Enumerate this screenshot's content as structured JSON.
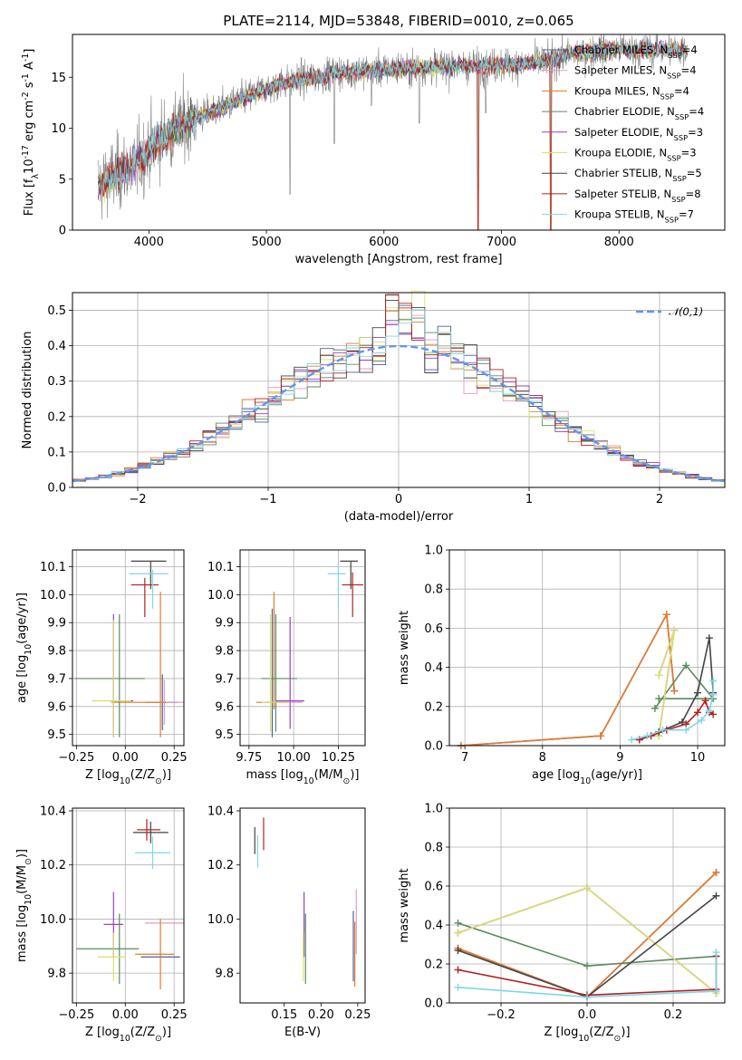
{
  "title": "PLATE=2114, MJD=53848, FIBERID=0010, z=0.065",
  "colors": [
    "#4d5f9b",
    "#e599c9",
    "#e07b2b",
    "#5b8a5f",
    "#9a3fc5",
    "#d9e16a",
    "#444444",
    "#b22222",
    "#7fd6e6"
  ],
  "model_labels": [
    "Chabrier MILES, N$_{SSP}$=4",
    "Salpeter MILES, N$_{SSP}$=4",
    "Kroupa MILES, N$_{SSP}$=4",
    "Chabrier ELODIE, N$_{SSP}$=4",
    "Salpeter ELODIE, N$_{SSP}$=3",
    "Kroupa ELODIE, N$_{SSP}$=3",
    "Chabrier STELIB, N$_{SSP}$=5",
    "Salpeter STELIB, N$_{SSP}$=8",
    "Kroupa STELIB, N$_{SSP}$=7"
  ],
  "chart_data": [
    {
      "type": "line",
      "id": "spectrum",
      "xlabel": "wavelength [Angstrom, rest frame]",
      "ylabel": "Flux [f$_\\lambda$10$^{-17}$ erg cm$^{-2}$ s$^{-1}$ A$^{-1}$]",
      "xlim": [
        3350,
        8900
      ],
      "ylim": [
        0,
        19.2
      ],
      "xticks": [
        4000,
        5000,
        6000,
        7000,
        8000
      ],
      "yticks": [
        0,
        5,
        10,
        15
      ],
      "data_range": [
        3570,
        8580
      ],
      "continuum": {
        "x": [
          3570,
          3700,
          3800,
          3900,
          4000,
          4100,
          4200,
          4300,
          4400,
          4600,
          4800,
          5000,
          5200,
          5400,
          5600,
          5800,
          6000,
          6200,
          6400,
          6600,
          6800,
          7000,
          7200,
          7400,
          7600,
          7800,
          8000,
          8200,
          8400,
          8580
        ],
        "y": [
          4.4,
          5.3,
          5.9,
          6.6,
          7.9,
          9.0,
          9.7,
          10.4,
          11.0,
          11.9,
          12.9,
          13.9,
          14.6,
          15.0,
          15.4,
          15.6,
          15.8,
          15.9,
          16.0,
          16.1,
          16.1,
          16.2,
          16.3,
          16.6,
          17.3,
          17.6,
          17.7,
          17.7,
          17.7,
          17.7
        ]
      },
      "lines": [
        {
          "x": 5200,
          "y": 3.5
        },
        {
          "x": 5577,
          "y": 8.5
        },
        {
          "x": 5893,
          "y": 12.2
        },
        {
          "x": 6300,
          "y": 10.5
        },
        {
          "x": 6800,
          "y": 0.0
        },
        {
          "x": 6867,
          "y": 11.5
        },
        {
          "x": 7420,
          "y": 0.0
        },
        {
          "x": 7605,
          "y": 17.0
        }
      ],
      "series": [
        {
          "name": "Chabrier MILES, N$_{SSP}$=4"
        },
        {
          "name": "Salpeter MILES, N$_{SSP}$=4"
        },
        {
          "name": "Kroupa MILES, N$_{SSP}$=4"
        },
        {
          "name": "Chabrier ELODIE, N$_{SSP}$=4"
        },
        {
          "name": "Salpeter ELODIE, N$_{SSP}$=3"
        },
        {
          "name": "Kroupa ELODIE, N$_{SSP}$=3"
        },
        {
          "name": "Chabrier STELIB, N$_{SSP}$=5"
        },
        {
          "name": "Salpeter STELIB, N$_{SSP}$=8"
        },
        {
          "name": "Kroupa STELIB, N$_{SSP}$=7"
        }
      ],
      "legend": "right",
      "grid": false
    },
    {
      "type": "line",
      "id": "residuals",
      "xlabel": "(data-model)/error",
      "ylabel": "Normed distribution",
      "xlim": [
        -2.5,
        2.5
      ],
      "ylim": [
        0,
        0.55
      ],
      "xticks": [
        -2,
        -1,
        0,
        1,
        2
      ],
      "yticks": [
        0.0,
        0.1,
        0.2,
        0.3,
        0.4,
        0.5
      ],
      "bin_width": 0.1,
      "gaussian_label": "$\\mathcal{N}(0,1)$",
      "legend": "upper right",
      "grid": true
    },
    {
      "type": "scatter",
      "id": "age_vs_Z",
      "xlabel": "Z [log$_{10}$(Z/Z$_\\odot$)]",
      "ylabel": "age  [log$_{10}$(age/yr)]",
      "xlim": [
        -0.27,
        0.3
      ],
      "ylim": [
        9.46,
        10.16
      ],
      "xticks": [
        -0.25,
        0.0,
        0.25
      ],
      "yticks": [
        9.5,
        9.6,
        9.7,
        9.8,
        9.9,
        10.0,
        10.1
      ],
      "grid": true,
      "points": [
        {
          "c": 0,
          "x": 0.19,
          "y": 9.615,
          "xerr": 0.08,
          "yerr": 0.1
        },
        {
          "c": 1,
          "x": 0.2,
          "y": 9.615,
          "xerr": 0.1,
          "yerr": 0.08
        },
        {
          "c": 2,
          "x": 0.07,
          "y": 9.615,
          "xerr": 0.14,
          "yerr": 0.0
        },
        {
          "c": 2,
          "x": 0.18,
          "y": 9.75,
          "xerr": 0.0,
          "yerr": 0.26
        },
        {
          "c": 3,
          "x": -0.08,
          "y": 9.7,
          "xerr": 0.18,
          "yerr": 0.0
        },
        {
          "c": 3,
          "x": -0.03,
          "y": 9.71,
          "xerr": 0.0,
          "yerr": 0.22
        },
        {
          "c": 4,
          "x": -0.06,
          "y": 9.71,
          "xerr": 0.0,
          "yerr": 0.22
        },
        {
          "c": 4,
          "x": -0.02,
          "y": 9.62,
          "xerr": 0.06,
          "yerr": 0.0
        },
        {
          "c": 5,
          "x": -0.06,
          "y": 9.7,
          "xerr": 0.0,
          "yerr": 0.21
        },
        {
          "c": 5,
          "x": -0.07,
          "y": 9.62,
          "xerr": 0.1,
          "yerr": 0.0
        },
        {
          "c": 6,
          "x": 0.12,
          "y": 10.12,
          "xerr": 0.09,
          "yerr": 0.0
        },
        {
          "c": 6,
          "x": 0.13,
          "y": 10.07,
          "xerr": 0.0,
          "yerr": 0.05
        },
        {
          "c": 7,
          "x": 0.1,
          "y": 10.035,
          "xerr": 0.07,
          "yerr": 0.0
        },
        {
          "c": 7,
          "x": 0.1,
          "y": 9.99,
          "xerr": 0.0,
          "yerr": 0.07
        },
        {
          "c": 8,
          "x": 0.12,
          "y": 10.075,
          "xerr": 0.1,
          "yerr": 0.0
        },
        {
          "c": 8,
          "x": 0.14,
          "y": 10.02,
          "xerr": 0.0,
          "yerr": 0.07
        }
      ]
    },
    {
      "type": "scatter",
      "id": "age_vs_mass",
      "xlabel": "mass [log$_{10}$(M/M$_\\odot$)]",
      "ylabel": "",
      "xlim": [
        9.7,
        10.4
      ],
      "ylim": [
        9.46,
        10.16
      ],
      "xticks": [
        9.75,
        10.0,
        10.25
      ],
      "yticks": [
        9.5,
        9.6,
        9.7,
        9.8,
        9.9,
        10.0,
        10.1
      ],
      "grid": true,
      "points": [
        {
          "c": 0,
          "x": 9.88,
          "y": 9.72,
          "xerr": 0.0,
          "yerr": 0.23
        },
        {
          "c": 1,
          "x": 9.95,
          "y": 9.615,
          "xerr": 0.1,
          "yerr": 0.0
        },
        {
          "c": 2,
          "x": 9.88,
          "y": 9.615,
          "xerr": 0.09,
          "yerr": 0.0
        },
        {
          "c": 2,
          "x": 9.89,
          "y": 9.8,
          "xerr": 0.0,
          "yerr": 0.21
        },
        {
          "c": 3,
          "x": 9.92,
          "y": 9.7,
          "xerr": 0.1,
          "yerr": 0.0
        },
        {
          "c": 3,
          "x": 9.9,
          "y": 9.72,
          "xerr": 0.0,
          "yerr": 0.21
        },
        {
          "c": 4,
          "x": 9.98,
          "y": 9.72,
          "xerr": 0.0,
          "yerr": 0.2
        },
        {
          "c": 4,
          "x": 9.98,
          "y": 9.62,
          "xerr": 0.08,
          "yerr": 0.0
        },
        {
          "c": 5,
          "x": 9.87,
          "y": 9.72,
          "xerr": 0.0,
          "yerr": 0.21
        },
        {
          "c": 5,
          "x": 9.9,
          "y": 9.615,
          "xerr": 0.08,
          "yerr": 0.0
        },
        {
          "c": 6,
          "x": 10.31,
          "y": 10.12,
          "xerr": 0.05,
          "yerr": 0.0
        },
        {
          "c": 6,
          "x": 10.32,
          "y": 10.07,
          "xerr": 0.0,
          "yerr": 0.05
        },
        {
          "c": 7,
          "x": 10.33,
          "y": 10.035,
          "xerr": 0.06,
          "yerr": 0.0
        },
        {
          "c": 7,
          "x": 10.33,
          "y": 10.0,
          "xerr": 0.0,
          "yerr": 0.08
        },
        {
          "c": 8,
          "x": 10.24,
          "y": 10.075,
          "xerr": 0.05,
          "yerr": 0.0
        },
        {
          "c": 8,
          "x": 10.25,
          "y": 10.03,
          "xerr": 0.0,
          "yerr": 0.08
        }
      ]
    },
    {
      "type": "line",
      "id": "mass_weight_vs_age",
      "xlabel": "age  [log$_{10}$(age/yr)]",
      "ylabel": "mass weight",
      "xlim": [
        6.8,
        10.35
      ],
      "ylim": [
        0,
        1.0
      ],
      "xticks": [
        7,
        8,
        9,
        10
      ],
      "yticks": [
        0.0,
        0.2,
        0.4,
        0.6,
        0.8,
        1.0
      ],
      "grid": true,
      "series": [
        {
          "c": 0,
          "x": [
            6.95,
            8.75,
            9.6,
            9.7
          ],
          "y": [
            0.0,
            0.05,
            0.67,
            0.28
          ]
        },
        {
          "c": 1,
          "x": [
            6.95,
            8.75,
            9.6,
            9.7
          ],
          "y": [
            0.0,
            0.05,
            0.67,
            0.28
          ]
        },
        {
          "c": 2,
          "x": [
            6.95,
            8.75,
            9.6,
            9.7
          ],
          "y": [
            0.0,
            0.05,
            0.67,
            0.28
          ]
        },
        {
          "c": 3,
          "x": [
            9.45,
            9.85,
            10.2,
            9.5
          ],
          "y": [
            0.19,
            0.41,
            0.24,
            0.24
          ]
        },
        {
          "c": 4,
          "x": [
            9.5,
            9.7,
            9.5
          ],
          "y": [
            0.36,
            0.59,
            0.05
          ]
        },
        {
          "c": 5,
          "x": [
            9.5,
            9.7,
            9.5
          ],
          "y": [
            0.36,
            0.59,
            0.05
          ]
        },
        {
          "c": 6,
          "x": [
            9.25,
            9.5,
            9.8,
            10.0,
            10.15,
            10.2
          ],
          "y": [
            0.03,
            0.07,
            0.12,
            0.27,
            0.55,
            0.27
          ]
        },
        {
          "c": 7,
          "x": [
            9.25,
            9.4,
            9.6,
            9.85,
            10.0,
            10.1,
            10.15,
            10.2
          ],
          "y": [
            0.03,
            0.05,
            0.08,
            0.11,
            0.17,
            0.23,
            0.17,
            0.16
          ]
        },
        {
          "c": 8,
          "x": [
            9.15,
            9.35,
            9.55,
            9.85,
            10.05,
            10.15,
            10.2,
            10.2
          ],
          "y": [
            0.03,
            0.05,
            0.08,
            0.08,
            0.13,
            0.18,
            0.26,
            0.33
          ]
        }
      ]
    },
    {
      "type": "scatter",
      "id": "mass_vs_Z",
      "xlabel": "Z [log$_{10}$(Z/Z$_\\odot$)]",
      "ylabel": "mass [log$_{10}$(M/M$_\\odot$)]",
      "xlim": [
        -0.27,
        0.3
      ],
      "ylim": [
        9.69,
        10.41
      ],
      "xticks": [
        -0.25,
        0.0,
        0.25
      ],
      "yticks": [
        9.8,
        10.0,
        10.2,
        10.4
      ],
      "grid": true,
      "points": [
        {
          "c": 0,
          "x": 0.18,
          "y": 9.86,
          "xerr": 0.1,
          "yerr": 0.0
        },
        {
          "c": 1,
          "x": 0.2,
          "y": 9.985,
          "xerr": 0.1,
          "yerr": 0.0
        },
        {
          "c": 2,
          "x": 0.15,
          "y": 9.87,
          "xerr": 0.1,
          "yerr": 0.0
        },
        {
          "c": 2,
          "x": 0.18,
          "y": 9.87,
          "xerr": 0.0,
          "yerr": 0.13
        },
        {
          "c": 3,
          "x": -0.09,
          "y": 9.89,
          "xerr": 0.16,
          "yerr": 0.0
        },
        {
          "c": 3,
          "x": -0.03,
          "y": 9.89,
          "xerr": 0.0,
          "yerr": 0.13
        },
        {
          "c": 4,
          "x": -0.06,
          "y": 9.98,
          "xerr": 0.0,
          "yerr": 0.12
        },
        {
          "c": 4,
          "x": -0.06,
          "y": 9.98,
          "xerr": 0.05,
          "yerr": 0.0
        },
        {
          "c": 5,
          "x": -0.07,
          "y": 9.86,
          "xerr": 0.07,
          "yerr": 0.0
        },
        {
          "c": 5,
          "x": -0.06,
          "y": 9.86,
          "xerr": 0.0,
          "yerr": 0.09
        },
        {
          "c": 6,
          "x": 0.13,
          "y": 10.32,
          "xerr": 0.09,
          "yerr": 0.0
        },
        {
          "c": 6,
          "x": 0.13,
          "y": 10.32,
          "xerr": 0.0,
          "yerr": 0.04
        },
        {
          "c": 7,
          "x": 0.12,
          "y": 10.33,
          "xerr": 0.06,
          "yerr": 0.0
        },
        {
          "c": 7,
          "x": 0.11,
          "y": 10.33,
          "xerr": 0.0,
          "yerr": 0.04
        },
        {
          "c": 8,
          "x": 0.14,
          "y": 10.245,
          "xerr": 0.09,
          "yerr": 0.0
        },
        {
          "c": 8,
          "x": 0.14,
          "y": 10.245,
          "xerr": 0.0,
          "yerr": 0.06
        }
      ]
    },
    {
      "type": "scatter",
      "id": "mass_vs_ebv",
      "xlabel": "E(B-V)",
      "ylabel": "",
      "xlim": [
        0.09,
        0.26
      ],
      "ylim": [
        9.69,
        10.41
      ],
      "xticks": [
        0.15,
        0.2,
        0.25
      ],
      "yticks": [
        9.8,
        10.0,
        10.2,
        10.4
      ],
      "grid": false,
      "points": [
        {
          "c": 0,
          "x": 0.244,
          "y": 9.9,
          "xerr": 0.0,
          "yerr": 0.13
        },
        {
          "c": 1,
          "x": 0.248,
          "y": 9.99,
          "xerr": 0.0,
          "yerr": 0.12
        },
        {
          "c": 2,
          "x": 0.246,
          "y": 9.87,
          "xerr": 0.0,
          "yerr": 0.12
        },
        {
          "c": 3,
          "x": 0.179,
          "y": 9.89,
          "xerr": 0.0,
          "yerr": 0.13
        },
        {
          "c": 4,
          "x": 0.177,
          "y": 9.98,
          "xerr": 0.0,
          "yerr": 0.12
        },
        {
          "c": 5,
          "x": 0.176,
          "y": 9.86,
          "xerr": 0.0,
          "yerr": 0.09
        },
        {
          "c": 6,
          "x": 0.11,
          "y": 10.29,
          "xerr": 0.0,
          "yerr": 0.05
        },
        {
          "c": 7,
          "x": 0.122,
          "y": 10.315,
          "xerr": 0.0,
          "yerr": 0.06
        },
        {
          "c": 8,
          "x": 0.114,
          "y": 10.25,
          "xerr": 0.0,
          "yerr": 0.06
        }
      ]
    },
    {
      "type": "line",
      "id": "mass_weight_vs_Z",
      "xlabel": "Z [log$_{10}$(Z/Z$_\\odot$)]",
      "ylabel": "mass weight",
      "xlim": [
        -0.32,
        0.32
      ],
      "ylim": [
        0,
        1.0
      ],
      "xticks": [
        -0.2,
        0.0,
        0.2
      ],
      "yticks": [
        0.0,
        0.2,
        0.4,
        0.6,
        0.8,
        1.0
      ],
      "grid": true,
      "series": [
        {
          "c": 0,
          "x": [
            -0.3,
            0.0,
            0.3
          ],
          "y": [
            0.28,
            0.03,
            0.67
          ]
        },
        {
          "c": 1,
          "x": [
            -0.3,
            0.0,
            0.3
          ],
          "y": [
            0.28,
            0.03,
            0.67
          ]
        },
        {
          "c": 2,
          "x": [
            -0.3,
            0.0,
            0.3
          ],
          "y": [
            0.28,
            0.03,
            0.67
          ]
        },
        {
          "c": 3,
          "x": [
            -0.3,
            0.0,
            0.3
          ],
          "y": [
            0.41,
            0.19,
            0.24
          ]
        },
        {
          "c": 4,
          "x": [
            -0.3,
            0.0,
            0.3
          ],
          "y": [
            0.36,
            0.59,
            0.05
          ]
        },
        {
          "c": 5,
          "x": [
            -0.3,
            0.0,
            0.3
          ],
          "y": [
            0.36,
            0.59,
            0.05
          ]
        },
        {
          "c": 6,
          "x": [
            -0.3,
            0.0,
            0.3
          ],
          "y": [
            0.27,
            0.03,
            0.55
          ]
        },
        {
          "c": 7,
          "x": [
            -0.3,
            0.0,
            0.3,
            0.3
          ],
          "y": [
            0.17,
            0.04,
            0.07,
            0.24
          ]
        },
        {
          "c": 8,
          "x": [
            -0.3,
            0.0,
            0.3,
            0.3
          ],
          "y": [
            0.08,
            0.03,
            0.06,
            0.26
          ]
        }
      ]
    }
  ]
}
